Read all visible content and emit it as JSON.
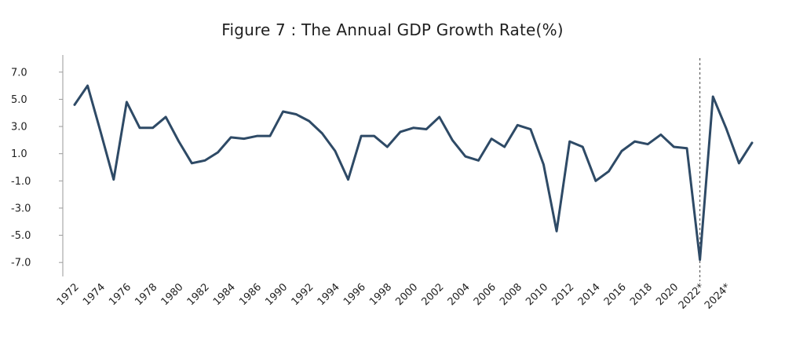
{
  "chart_data": {
    "type": "line",
    "title": "Figure 7 : The Annual GDP Growth Rate(%)",
    "xlabel": "",
    "ylabel": "",
    "ylim": [
      -8,
      8
    ],
    "y_ticks": [
      7.0,
      5.0,
      3.0,
      1.0,
      -1.0,
      -3.0,
      -5.0,
      -7.0
    ],
    "y_tick_labels": [
      "7.0",
      "5.0",
      "3.0",
      "1.0",
      "-1.0",
      "-3.0",
      "-5.0",
      "-7.0"
    ],
    "x_tick_labels": [
      "1972",
      "1974",
      "1976",
      "1978",
      "1980",
      "1982",
      "1984",
      "1986",
      "1990",
      "1992",
      "1994",
      "1996",
      "1998",
      "2000",
      "2002",
      "2004",
      "2006",
      "2008",
      "2010",
      "2012",
      "2014",
      "2016",
      "2018",
      "2020",
      "2022*",
      "2024*"
    ],
    "x_tick_positions": [
      0,
      2,
      4,
      6,
      8,
      10,
      12,
      14,
      16,
      18,
      20,
      22,
      24,
      26,
      28,
      30,
      32,
      34,
      36,
      38,
      40,
      42,
      44,
      46,
      48,
      50
    ],
    "forecast_marker_label": "2022*",
    "line_color": "#2e4a66",
    "series": [
      {
        "name": "GDP growth rate",
        "values": [
          4.6,
          6.0,
          2.6,
          -0.9,
          4.8,
          2.9,
          2.9,
          3.7,
          1.9,
          0.3,
          0.5,
          1.1,
          2.2,
          2.1,
          2.3,
          2.3,
          4.1,
          3.9,
          3.4,
          2.5,
          1.2,
          -0.9,
          2.3,
          2.3,
          1.5,
          2.6,
          2.9,
          2.8,
          3.7,
          2.0,
          0.8,
          0.5,
          2.1,
          1.5,
          3.1,
          2.8,
          0.2,
          -4.7,
          1.9,
          1.5,
          -1.0,
          -0.3,
          1.2,
          1.9,
          1.7,
          2.4,
          1.5,
          1.4,
          -6.8,
          5.2,
          2.9,
          0.3,
          1.8
        ]
      }
    ]
  }
}
